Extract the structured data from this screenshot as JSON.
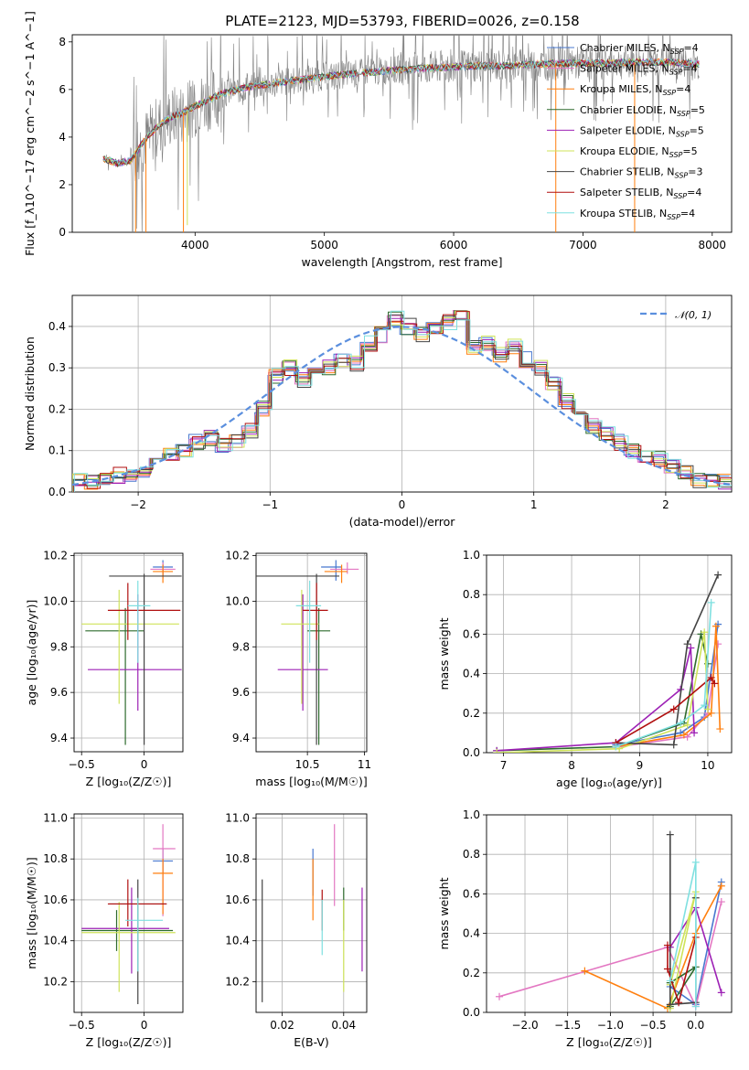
{
  "title": "PLATE=2123, MJD=53793, FIBERID=0026, z=0.158",
  "colors": {
    "spectrum": "#808080",
    "chabrier_miles": "#4878cf",
    "salpeter_miles": "#e377c2",
    "kroupa_miles": "#ff7f0e",
    "chabrier_elodie": "#2e6b2e",
    "salpeter_elodie": "#9d21b5",
    "kroupa_elodie": "#cfe35a",
    "chabrier_stelib": "#444444",
    "salpeter_stelib": "#b00f0f",
    "kroupa_stelib": "#7fe0e0",
    "normal": "#5b8fde"
  },
  "chart_data": [
    {
      "type": "line",
      "name": "spectrum",
      "xlabel": "wavelength [Angstrom, rest frame]",
      "ylabel": "Flux [f_λ10^−17 erg cm^−2 s^−1 A^−1]",
      "xlim": [
        3050,
        8150
      ],
      "ylim": [
        0,
        8.3
      ],
      "xticks": [
        4000,
        5000,
        6000,
        7000,
        8000
      ],
      "yticks": [
        0,
        2,
        4,
        6,
        8
      ],
      "grid": false,
      "legend_position": "right",
      "legend": [
        {
          "label": "Chabrier MILES, N",
          "sub": "SSP",
          "suffix": "=4"
        },
        {
          "label": "Salpeter MILES, N",
          "sub": "SSP",
          "suffix": "=4"
        },
        {
          "label": "Kroupa MILES, N",
          "sub": "SSP",
          "suffix": "=4"
        },
        {
          "label": "Chabrier ELODIE, N",
          "sub": "SSP",
          "suffix": "=5"
        },
        {
          "label": "Salpeter ELODIE, N",
          "sub": "SSP",
          "suffix": "=5"
        },
        {
          "label": "Kroupa ELODIE, N",
          "sub": "SSP",
          "suffix": "=5"
        },
        {
          "label": "Chabrier STELIB, N",
          "sub": "SSP",
          "suffix": "=3"
        },
        {
          "label": "Salpeter STELIB, N",
          "sub": "SSP",
          "suffix": "=4"
        },
        {
          "label": "Kroupa STELIB, N",
          "sub": "SSP",
          "suffix": "=4"
        }
      ],
      "model_continuum": {
        "x": [
          3290,
          3400,
          3500,
          3600,
          3700,
          3800,
          3900,
          4000,
          4200,
          4400,
          4600,
          4800,
          5000,
          5200,
          5400,
          5600,
          5800,
          6000,
          6200,
          6400,
          6600,
          6800,
          7000,
          7200,
          7400,
          7600,
          7800,
          7900
        ],
        "y": [
          3.1,
          2.9,
          3.0,
          3.8,
          4.4,
          4.8,
          5.0,
          5.3,
          5.8,
          6.1,
          6.25,
          6.4,
          6.55,
          6.65,
          6.75,
          6.85,
          6.9,
          6.95,
          7.0,
          7.0,
          7.05,
          7.1,
          7.1,
          7.1,
          7.15,
          7.15,
          7.1,
          7.05
        ]
      }
    },
    {
      "type": "line",
      "name": "residual-histogram",
      "xlabel": "(data-model)/error",
      "ylabel": "Normed distribution",
      "xlim": [
        -2.5,
        2.5
      ],
      "ylim": [
        0,
        0.475
      ],
      "xticks": [
        -2,
        -1,
        0,
        1,
        2
      ],
      "yticks": [
        0.0,
        0.1,
        0.2,
        0.3,
        0.4
      ],
      "grid": true,
      "legend_position": "top-right",
      "legend_label": "𝒩(0, 1)",
      "bins": {
        "start": -2.5,
        "width": 0.1,
        "values": [
          0.03,
          0.025,
          0.03,
          0.04,
          0.04,
          0.055,
          0.07,
          0.09,
          0.1,
          0.12,
          0.13,
          0.11,
          0.12,
          0.15,
          0.2,
          0.28,
          0.3,
          0.27,
          0.29,
          0.3,
          0.32,
          0.31,
          0.36,
          0.38,
          0.42,
          0.4,
          0.38,
          0.39,
          0.41,
          0.42,
          0.35,
          0.36,
          0.33,
          0.35,
          0.32,
          0.3,
          0.26,
          0.22,
          0.2,
          0.16,
          0.14,
          0.12,
          0.1,
          0.09,
          0.08,
          0.06,
          0.05,
          0.03,
          0.03,
          0.025
        ]
      }
    },
    {
      "type": "scatter",
      "name": "age-vs-Z",
      "xlabel": "Z [log₁₀(Z/Z☉)]",
      "ylabel": "age  [log₁₀(age/yr)]",
      "xlim": [
        -0.56,
        0.31
      ],
      "ylim": [
        9.34,
        10.21
      ],
      "xticks": [
        -0.5,
        0.0
      ],
      "yticks": [
        9.4,
        9.6,
        9.8,
        10.0,
        10.2
      ],
      "grid": true,
      "points": [
        {
          "model": "chabrier_miles",
          "x": 0.15,
          "xerr": [
            0.08,
            0.08
          ],
          "y": 10.15,
          "yerr": [
            0.04,
            0.03
          ]
        },
        {
          "model": "salpeter_miles",
          "x": 0.15,
          "xerr": [
            0.1,
            0.1
          ],
          "y": 10.14,
          "yerr": [
            0.04,
            0.03
          ]
        },
        {
          "model": "kroupa_miles",
          "x": 0.15,
          "xerr": [
            0.08,
            0.08
          ],
          "y": 10.13,
          "yerr": [
            0.05,
            0.03
          ]
        },
        {
          "model": "chabrier_elodie",
          "x": -0.15,
          "xerr": [
            0.32,
            0.15
          ],
          "y": 9.87,
          "yerr": [
            0.5,
            0.1
          ]
        },
        {
          "model": "salpeter_elodie",
          "x": -0.05,
          "xerr": [
            0.4,
            0.35
          ],
          "y": 9.7,
          "yerr": [
            0.18,
            0.33
          ]
        },
        {
          "model": "kroupa_elodie",
          "x": -0.2,
          "xerr": [
            0.3,
            0.48
          ],
          "y": 9.9,
          "yerr": [
            0.35,
            0.15
          ]
        },
        {
          "model": "chabrier_stelib",
          "x": 0.0,
          "xerr": [
            0.28,
            0.3
          ],
          "y": 10.11,
          "yerr": [
            0.74,
            0.01
          ]
        },
        {
          "model": "salpeter_stelib",
          "x": -0.13,
          "xerr": [
            0.16,
            0.42
          ],
          "y": 9.96,
          "yerr": [
            0.13,
            0.12
          ]
        },
        {
          "model": "kroupa_stelib",
          "x": -0.05,
          "xerr": [
            0.08,
            0.1
          ],
          "y": 9.98,
          "yerr": [
            0.25,
            0.11
          ]
        }
      ]
    },
    {
      "type": "scatter",
      "name": "age-vs-mass",
      "xlabel": "mass [log₁₀(M/M☉)]",
      "ylabel": "",
      "xlim": [
        10.05,
        11.02
      ],
      "ylim": [
        9.34,
        10.21
      ],
      "xticks": [
        10.5,
        11.0
      ],
      "yticks": [
        9.4,
        9.6,
        9.8,
        10.0,
        10.2
      ],
      "grid": true,
      "points": [
        {
          "model": "chabrier_miles",
          "x": 10.75,
          "xerr": [
            0.13,
            0.05
          ],
          "y": 10.15,
          "yerr": [
            0.06,
            0.03
          ]
        },
        {
          "model": "salpeter_miles",
          "x": 10.85,
          "xerr": [
            0.15,
            0.1
          ],
          "y": 10.14,
          "yerr": [
            0.02,
            0.03
          ]
        },
        {
          "model": "kroupa_miles",
          "x": 10.8,
          "xerr": [
            0.15,
            0.05
          ],
          "y": 10.13,
          "yerr": [
            0.05,
            0.03
          ]
        },
        {
          "model": "chabrier_elodie",
          "x": 10.6,
          "xerr": [
            0.1,
            0.1
          ],
          "y": 9.87,
          "yerr": [
            0.5,
            0.1
          ]
        },
        {
          "model": "salpeter_elodie",
          "x": 10.46,
          "xerr": [
            0.22,
            0.22
          ],
          "y": 9.7,
          "yerr": [
            0.18,
            0.33
          ]
        },
        {
          "model": "kroupa_elodie",
          "x": 10.45,
          "xerr": [
            0.18,
            0.15
          ],
          "y": 9.9,
          "yerr": [
            0.35,
            0.15
          ]
        },
        {
          "model": "chabrier_stelib",
          "x": 10.58,
          "xerr": [
            0.53,
            0.2
          ],
          "y": 10.11,
          "yerr": [
            0.74,
            0.01
          ]
        },
        {
          "model": "salpeter_stelib",
          "x": 10.58,
          "xerr": [
            0.12,
            0.1
          ],
          "y": 9.96,
          "yerr": [
            0.13,
            0.12
          ]
        },
        {
          "model": "kroupa_stelib",
          "x": 10.52,
          "xerr": [
            0.12,
            0.1
          ],
          "y": 9.98,
          "yerr": [
            0.25,
            0.11
          ]
        }
      ]
    },
    {
      "type": "line",
      "name": "mass-weight-vs-age",
      "xlabel": "age  [log₁₀(age/yr)]",
      "ylabel": "mass weight",
      "xlim": [
        6.75,
        10.35
      ],
      "ylim": [
        0,
        1.0
      ],
      "xticks": [
        7,
        8,
        9,
        10
      ],
      "yticks": [
        0.0,
        0.2,
        0.4,
        0.6,
        0.8,
        1.0
      ],
      "grid": true,
      "series": [
        {
          "model": "chabrier_miles",
          "x": [
            8.65,
            9.6,
            9.95,
            10.15
          ],
          "y": [
            0.04,
            0.1,
            0.18,
            0.65
          ]
        },
        {
          "model": "salpeter_miles",
          "x": [
            8.7,
            9.7,
            10.0,
            10.15
          ],
          "y": [
            0.03,
            0.08,
            0.2,
            0.55
          ]
        },
        {
          "model": "kroupa_miles",
          "x": [
            8.65,
            9.65,
            10.05,
            10.12,
            10.18
          ],
          "y": [
            0.03,
            0.09,
            0.2,
            0.64,
            0.12
          ]
        },
        {
          "model": "chabrier_elodie",
          "x": [
            6.9,
            8.65,
            9.65,
            9.9,
            10.0
          ],
          "y": [
            0.01,
            0.03,
            0.15,
            0.6,
            0.45
          ]
        },
        {
          "model": "salpeter_elodie",
          "x": [
            6.9,
            8.65,
            9.6,
            9.75,
            9.8
          ],
          "y": [
            0.01,
            0.05,
            0.32,
            0.53,
            0.1
          ]
        },
        {
          "model": "kroupa_elodie",
          "x": [
            6.9,
            8.7,
            9.7,
            9.95,
            10.0
          ],
          "y": [
            0.0,
            0.02,
            0.14,
            0.61,
            0.22
          ]
        },
        {
          "model": "chabrier_stelib",
          "x": [
            8.65,
            9.5,
            9.7,
            10.15
          ],
          "y": [
            0.05,
            0.04,
            0.55,
            0.9
          ]
        },
        {
          "model": "salpeter_stelib",
          "x": [
            8.65,
            9.5,
            10.05,
            10.1
          ],
          "y": [
            0.05,
            0.22,
            0.38,
            0.35
          ]
        },
        {
          "model": "kroupa_stelib",
          "x": [
            8.65,
            9.6,
            9.95,
            10.05
          ],
          "y": [
            0.03,
            0.15,
            0.24,
            0.76
          ]
        }
      ]
    },
    {
      "type": "scatter",
      "name": "mass-vs-Z",
      "xlabel": "Z [log₁₀(Z/Z☉)]",
      "ylabel": "mass [log₁₀(M/M☉)]",
      "xlim": [
        -0.56,
        0.31
      ],
      "ylim": [
        10.05,
        11.02
      ],
      "xticks": [
        -0.5,
        0.0
      ],
      "yticks": [
        10.2,
        10.4,
        10.6,
        10.8,
        11.0
      ],
      "grid": true,
      "points": [
        {
          "model": "chabrier_miles",
          "x": 0.15,
          "xerr": [
            0.08,
            0.08
          ],
          "y": 10.79,
          "yerr": [
            0.06,
            0.06
          ]
        },
        {
          "model": "salpeter_miles",
          "x": 0.15,
          "xerr": [
            0.08,
            0.1
          ],
          "y": 10.85,
          "yerr": [
            0.33,
            0.12
          ]
        },
        {
          "model": "kroupa_miles",
          "x": 0.15,
          "xerr": [
            0.08,
            0.08
          ],
          "y": 10.73,
          "yerr": [
            0.2,
            0.07
          ]
        },
        {
          "model": "chabrier_elodie",
          "x": -0.22,
          "xerr": [
            0.28,
            0.45
          ],
          "y": 10.45,
          "yerr": [
            0.1,
            0.1
          ]
        },
        {
          "model": "salpeter_elodie",
          "x": -0.1,
          "xerr": [
            0.4,
            0.3
          ],
          "y": 10.46,
          "yerr": [
            0.22,
            0.2
          ]
        },
        {
          "model": "kroupa_elodie",
          "x": -0.2,
          "xerr": [
            0.3,
            0.45
          ],
          "y": 10.44,
          "yerr": [
            0.29,
            0.15
          ]
        },
        {
          "model": "chabrier_stelib",
          "x": -0.05,
          "xerr": [
            0.23,
            0.23
          ],
          "y": 10.58,
          "yerr": [
            0.49,
            0.12
          ]
        },
        {
          "model": "salpeter_stelib",
          "x": -0.13,
          "xerr": [
            0.16,
            0.31
          ],
          "y": 10.58,
          "yerr": [
            0.11,
            0.12
          ]
        },
        {
          "model": "kroupa_stelib",
          "x": -0.05,
          "xerr": [
            0.1,
            0.2
          ],
          "y": 10.5,
          "yerr": [
            0.25,
            0.11
          ]
        }
      ]
    },
    {
      "type": "scatter",
      "name": "mass-vs-ebv",
      "xlabel": "E(B-V)",
      "ylabel": "",
      "xlim": [
        0.0115,
        0.0475
      ],
      "ylim": [
        10.05,
        11.02
      ],
      "xticks": [
        0.02,
        0.04
      ],
      "yticks": [
        10.2,
        10.4,
        10.6,
        10.8,
        11.0
      ],
      "grid": true,
      "points": [
        {
          "model": "chabrier_miles",
          "x": 0.03,
          "y": 10.72,
          "yerr": [
            0.1,
            0.13
          ]
        },
        {
          "model": "salpeter_miles",
          "x": 0.037,
          "y": 10.77,
          "yerr": [
            0.2,
            0.2
          ]
        },
        {
          "model": "kroupa_miles",
          "x": 0.03,
          "y": 10.65,
          "yerr": [
            0.15,
            0.15
          ]
        },
        {
          "model": "chabrier_elodie",
          "x": 0.04,
          "y": 10.55,
          "yerr": [
            0.1,
            0.11
          ]
        },
        {
          "model": "salpeter_elodie",
          "x": 0.046,
          "y": 10.45,
          "yerr": [
            0.2,
            0.21
          ]
        },
        {
          "model": "kroupa_elodie",
          "x": 0.04,
          "y": 10.4,
          "yerr": [
            0.25,
            0.2
          ]
        },
        {
          "model": "chabrier_stelib",
          "x": 0.0135,
          "y": 10.4,
          "yerr": [
            0.3,
            0.3
          ]
        },
        {
          "model": "salpeter_stelib",
          "x": 0.033,
          "y": 10.55,
          "yerr": [
            0.1,
            0.1
          ]
        },
        {
          "model": "kroupa_stelib",
          "x": 0.033,
          "y": 10.45,
          "yerr": [
            0.12,
            0.15
          ]
        }
      ]
    },
    {
      "type": "line",
      "name": "mass-weight-vs-Z",
      "xlabel": "Z [log₁₀(Z/Z☉)]",
      "ylabel": "mass weight",
      "xlim": [
        -2.45,
        0.42
      ],
      "ylim": [
        0,
        1.0
      ],
      "xticks": [
        -2.0,
        -1.5,
        -1.0,
        -0.5,
        0.0
      ],
      "yticks": [
        0.0,
        0.2,
        0.4,
        0.6,
        0.8,
        1.0
      ],
      "grid": true,
      "series": [
        {
          "model": "chabrier_miles",
          "x": [
            -0.3,
            0.0,
            0.3
          ],
          "y": [
            0.13,
            0.04,
            0.66
          ]
        },
        {
          "model": "salpeter_miles",
          "x": [
            -2.3,
            -0.33,
            0.0,
            0.3
          ],
          "y": [
            0.08,
            0.33,
            0.03,
            0.56
          ]
        },
        {
          "model": "kroupa_miles",
          "x": [
            -1.3,
            -0.33,
            0.0,
            0.3
          ],
          "y": [
            0.21,
            0.02,
            0.4,
            0.64
          ]
        },
        {
          "model": "chabrier_elodie",
          "x": [
            -0.3,
            0.0,
            -0.3
          ],
          "y": [
            0.15,
            0.23,
            0.03
          ]
        },
        {
          "model": "salpeter_elodie",
          "x": [
            -0.3,
            0.0,
            0.3
          ],
          "y": [
            0.33,
            0.53,
            0.1
          ]
        },
        {
          "model": "kroupa_elodie",
          "x": [
            -0.3,
            0.0,
            -0.3
          ],
          "y": [
            0.14,
            0.61,
            0.02
          ]
        },
        {
          "model": "chabrier_stelib",
          "x": [
            -0.3,
            -0.3,
            0.0,
            0.0
          ],
          "y": [
            0.9,
            0.04,
            0.05,
            0.58
          ]
        },
        {
          "model": "salpeter_stelib",
          "x": [
            -0.33,
            -0.33,
            -0.2,
            0.0
          ],
          "y": [
            0.34,
            0.22,
            0.05,
            0.38
          ]
        },
        {
          "model": "kroupa_stelib",
          "x": [
            -0.3,
            0.0,
            0.0
          ],
          "y": [
            0.16,
            0.76,
            0.03
          ]
        }
      ]
    }
  ]
}
